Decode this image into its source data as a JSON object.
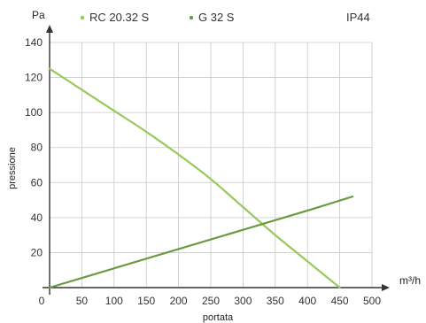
{
  "chart_data": {
    "type": "line",
    "y_unit": "Pa",
    "x_unit": "m³/h",
    "ylabel": "pressione",
    "xlabel": "portata",
    "rating": "IP44",
    "xlim": [
      0,
      500
    ],
    "ylim": [
      0,
      140
    ],
    "x_ticks": [
      0,
      50,
      100,
      150,
      200,
      250,
      300,
      350,
      400,
      450,
      500
    ],
    "y_ticks": [
      20,
      40,
      60,
      80,
      100,
      120,
      140
    ],
    "grid": true,
    "legend_position": "top",
    "series": [
      {
        "name": "RC 20.32 S",
        "color": "#98c85a",
        "x": [
          0,
          50,
          100,
          150,
          200,
          250,
          300,
          350,
          400,
          450
        ],
        "y": [
          125,
          113,
          101,
          89,
          76,
          62,
          46,
          30,
          15,
          0
        ]
      },
      {
        "name": "G 32 S",
        "color": "#6c9a42",
        "x": [
          0,
          100,
          200,
          300,
          400,
          470
        ],
        "y": [
          0,
          11,
          22,
          33,
          44,
          52
        ]
      }
    ]
  }
}
